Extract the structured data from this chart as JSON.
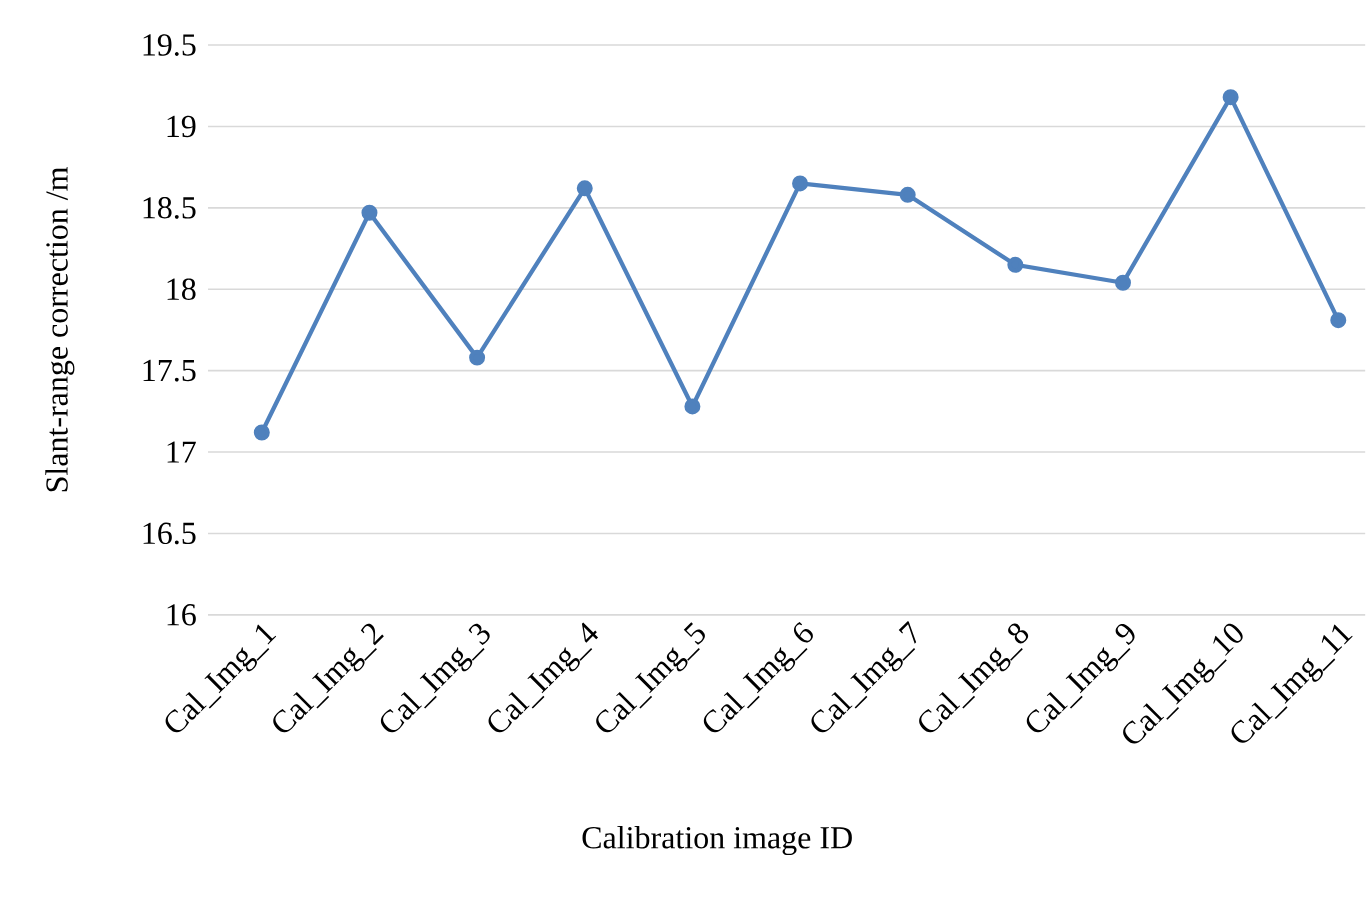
{
  "chart_data": {
    "type": "line",
    "xlabel": "Calibration image ID",
    "ylabel": "Slant-range correction /m",
    "categories": [
      "Cal_Img_1",
      "Cal_Img_2",
      "Cal_Img_3",
      "Cal_Img_4",
      "Cal_Img_5",
      "Cal_Img_6",
      "Cal_Img_7",
      "Cal_Img_8",
      "Cal_Img_9",
      "Cal_Img_10",
      "Cal_Img_11"
    ],
    "series": [
      {
        "color": "#4f81bd",
        "values": [
          17.12,
          18.47,
          17.58,
          18.62,
          17.28,
          18.65,
          18.58,
          18.15,
          18.04,
          19.18,
          17.81
        ]
      }
    ],
    "ylim": [
      16,
      19.5
    ],
    "yticks": [
      16,
      16.5,
      17,
      17.5,
      18,
      18.5,
      19,
      19.5
    ],
    "grid": "y",
    "marker": "circle",
    "line_style": "solid",
    "legend": false
  }
}
